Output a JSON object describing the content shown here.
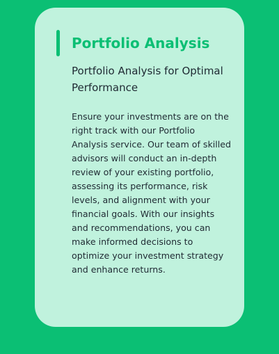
{
  "card": {
    "title": "Portfolio Analysis",
    "subtitle": "Portfolio Analysis for Optimal Performance",
    "body": "Ensure your investments are on the right track with our Portfolio Analysis service. Our team of skilled advisors will conduct an in-depth review of your existing portfolio, assessing its performance, risk levels, and alignment with your financial goals. With our insights and recommendations, you can make informed decisions to optimize your investment strategy and enhance returns."
  },
  "colors": {
    "background": "#0bbf74",
    "card": "#c0f2dd",
    "accent": "#0bbf74",
    "text": "#1f2a33"
  }
}
